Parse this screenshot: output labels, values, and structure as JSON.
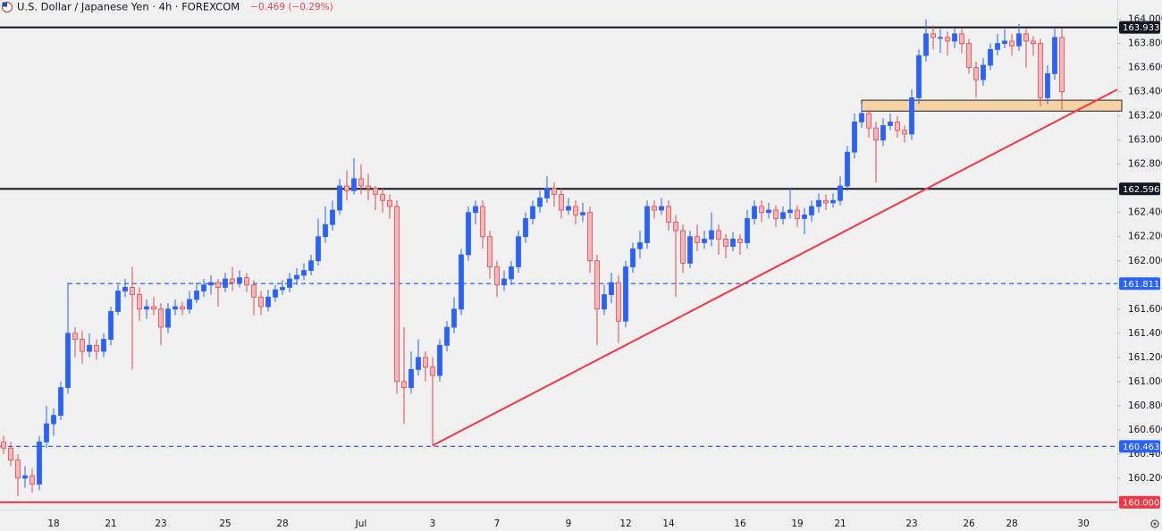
{
  "chart_data": {
    "type": "candlestick",
    "title": "U.S. Dollar / Japanese Yen · 4h · FOREXCOM",
    "change": "−0.469 (−0.29%)",
    "up_color": "#2962ff",
    "down_color": "#e5484d",
    "categories": [
      null,
      null,
      null,
      null,
      null,
      null,
      null,
      "18",
      null,
      null,
      null,
      null,
      null,
      null,
      null,
      "21",
      null,
      null,
      null,
      null,
      null,
      null,
      "23",
      null,
      null,
      null,
      null,
      null,
      null,
      null,
      null,
      "25",
      null,
      null,
      null,
      null,
      null,
      null,
      null,
      "28",
      null,
      null,
      null,
      null,
      null,
      null,
      null,
      null,
      null,
      null,
      "Jul",
      null,
      null,
      null,
      null,
      null,
      null,
      null,
      null,
      null,
      "3",
      null,
      null,
      null,
      null,
      null,
      null,
      null,
      null,
      "7",
      null,
      null,
      null,
      null,
      null,
      null,
      null,
      null,
      null,
      "9",
      null,
      null,
      null,
      null,
      null,
      null,
      null,
      "12",
      null,
      null,
      null,
      null,
      null,
      "14",
      null,
      null,
      null,
      null,
      null,
      null,
      null,
      null,
      null,
      "16",
      null,
      null,
      null,
      null,
      null,
      null,
      null,
      "19",
      null,
      null,
      null,
      null,
      null,
      "21",
      null,
      null,
      null,
      null,
      null,
      null,
      null,
      null,
      null,
      "23",
      null,
      null,
      null,
      null,
      null,
      null,
      null,
      "26",
      null,
      null,
      null,
      null,
      null,
      "28",
      null,
      null,
      null,
      null,
      null,
      null,
      null,
      null,
      null,
      "30"
    ],
    "open": [
      160.5,
      160.45,
      160.35,
      160.2,
      160.22,
      160.15,
      160.5,
      160.65,
      160.72,
      160.95,
      161.4,
      161.35,
      161.25,
      161.3,
      161.25,
      161.35,
      161.58,
      161.75,
      161.78,
      161.72,
      161.6,
      161.62,
      161.6,
      161.45,
      161.6,
      161.62,
      161.6,
      161.68,
      161.75,
      161.8,
      161.82,
      161.78,
      161.85,
      161.82,
      161.86,
      161.8,
      161.7,
      161.62,
      161.7,
      161.76,
      161.78,
      161.85,
      161.88,
      161.92,
      162.0,
      162.2,
      162.3,
      162.42,
      162.62,
      162.58,
      162.68,
      162.62,
      162.6,
      162.55,
      162.5,
      162.45,
      161.0,
      160.95,
      161.1,
      161.2,
      161.12,
      161.05,
      161.3,
      161.45,
      161.6,
      162.05,
      162.4,
      162.45,
      162.2,
      161.95,
      161.8,
      161.85,
      161.95,
      162.2,
      162.35,
      162.45,
      162.52,
      162.6,
      162.55,
      162.42,
      162.45,
      162.38,
      162.4,
      162.0,
      161.6,
      161.72,
      161.82,
      161.5,
      161.95,
      162.1,
      162.15,
      162.45,
      162.42,
      162.45,
      162.32,
      162.25,
      161.98,
      162.2,
      162.15,
      162.18,
      162.25,
      162.18,
      162.12,
      162.18,
      162.15,
      162.35,
      162.45,
      162.4,
      162.42,
      162.35,
      162.4,
      162.42,
      162.35,
      162.38,
      162.45,
      162.5,
      162.48,
      162.5,
      162.62,
      162.9,
      163.15,
      163.22,
      163.1,
      163.0,
      163.12,
      163.15,
      163.08,
      163.05,
      163.35,
      163.7,
      163.88,
      163.85,
      163.85,
      163.82,
      163.88,
      163.8,
      163.6,
      163.5,
      163.62,
      163.75,
      163.8,
      163.82,
      163.78,
      163.88,
      163.82,
      163.8,
      163.35,
      163.55,
      163.85,
      null,
      null,
      null
    ],
    "high": [
      160.55,
      160.5,
      160.4,
      160.3,
      160.28,
      160.55,
      160.8,
      160.78,
      161.0,
      161.82,
      161.45,
      161.42,
      161.4,
      161.35,
      161.4,
      161.62,
      161.8,
      161.85,
      161.95,
      161.78,
      161.68,
      161.7,
      161.65,
      161.65,
      161.68,
      161.66,
      161.75,
      161.82,
      161.85,
      161.88,
      161.85,
      161.9,
      161.95,
      161.92,
      161.9,
      161.84,
      161.75,
      161.76,
      161.8,
      161.84,
      161.9,
      161.94,
      161.98,
      162.05,
      162.35,
      162.45,
      162.5,
      162.68,
      162.75,
      162.85,
      162.8,
      162.72,
      162.62,
      162.6,
      162.55,
      162.5,
      161.45,
      161.25,
      161.35,
      161.25,
      161.2,
      161.35,
      161.5,
      161.7,
      162.1,
      162.45,
      162.5,
      162.5,
      162.25,
      162.0,
      161.92,
      162.0,
      162.25,
      162.4,
      162.5,
      162.58,
      162.7,
      162.65,
      162.6,
      162.52,
      162.5,
      162.48,
      162.45,
      162.05,
      161.8,
      161.9,
      161.88,
      162.0,
      162.15,
      162.25,
      162.5,
      162.5,
      162.52,
      162.5,
      162.38,
      162.3,
      162.25,
      162.3,
      162.25,
      162.4,
      162.3,
      162.22,
      162.24,
      162.22,
      162.42,
      162.5,
      162.5,
      162.48,
      162.46,
      162.45,
      162.6,
      162.46,
      162.44,
      162.5,
      162.56,
      162.55,
      162.56,
      162.7,
      162.95,
      163.22,
      163.3,
      163.25,
      163.15,
      163.18,
      163.22,
      163.2,
      163.12,
      163.42,
      163.75,
      164.0,
      163.95,
      163.92,
      163.9,
      163.93,
      163.92,
      163.84,
      163.65,
      163.68,
      163.8,
      163.88,
      163.92,
      163.88,
      163.96,
      163.92,
      163.86,
      163.84,
      163.62,
      163.93,
      163.93,
      null,
      null,
      null
    ],
    "low": [
      160.4,
      160.3,
      160.05,
      160.12,
      160.08,
      160.1,
      160.45,
      160.55,
      160.68,
      160.9,
      161.2,
      161.15,
      161.2,
      161.18,
      161.2,
      161.3,
      161.55,
      161.7,
      161.1,
      161.5,
      161.52,
      161.55,
      161.3,
      161.4,
      161.55,
      161.55,
      161.56,
      161.65,
      161.7,
      161.72,
      161.62,
      161.74,
      161.75,
      161.78,
      161.74,
      161.55,
      161.55,
      161.58,
      161.66,
      161.72,
      161.74,
      161.8,
      161.84,
      161.88,
      161.96,
      162.15,
      162.25,
      162.38,
      162.5,
      162.55,
      162.55,
      162.5,
      162.42,
      162.4,
      162.35,
      160.9,
      160.65,
      160.9,
      161.05,
      161.0,
      160.47,
      161.0,
      161.25,
      161.4,
      161.55,
      162.0,
      162.3,
      162.1,
      161.85,
      161.7,
      161.75,
      161.8,
      161.9,
      162.15,
      162.3,
      162.4,
      162.48,
      162.45,
      162.35,
      162.38,
      162.3,
      162.32,
      161.9,
      161.3,
      161.55,
      161.65,
      161.32,
      161.45,
      161.9,
      162.02,
      162.1,
      162.35,
      162.38,
      162.25,
      161.7,
      161.9,
      161.94,
      162.08,
      162.1,
      162.12,
      162.05,
      162.02,
      162.08,
      162.05,
      162.1,
      162.3,
      162.32,
      162.35,
      162.28,
      162.3,
      162.35,
      162.28,
      162.22,
      162.32,
      162.4,
      162.42,
      162.44,
      162.46,
      162.58,
      162.85,
      163.1,
      163.02,
      162.65,
      162.95,
      163.08,
      163.02,
      162.98,
      163.0,
      163.3,
      163.65,
      163.75,
      163.72,
      163.7,
      163.76,
      163.72,
      163.55,
      163.35,
      163.45,
      163.58,
      163.7,
      163.76,
      163.7,
      163.74,
      163.6,
      163.7,
      163.28,
      163.3,
      163.5,
      163.25,
      null,
      null,
      null
    ],
    "close": [
      160.45,
      160.35,
      160.2,
      160.22,
      160.15,
      160.5,
      160.65,
      160.72,
      160.95,
      161.4,
      161.35,
      161.25,
      161.3,
      161.25,
      161.35,
      161.58,
      161.75,
      161.78,
      161.72,
      161.6,
      161.62,
      161.6,
      161.45,
      161.6,
      161.62,
      161.6,
      161.68,
      161.75,
      161.8,
      161.82,
      161.78,
      161.85,
      161.82,
      161.86,
      161.8,
      161.7,
      161.62,
      161.7,
      161.76,
      161.78,
      161.85,
      161.88,
      161.92,
      162.0,
      162.2,
      162.3,
      162.42,
      162.62,
      162.58,
      162.68,
      162.62,
      162.6,
      162.55,
      162.5,
      162.45,
      161.0,
      160.95,
      161.1,
      161.2,
      161.12,
      161.05,
      161.3,
      161.45,
      161.6,
      162.05,
      162.4,
      162.45,
      162.2,
      161.95,
      161.8,
      161.85,
      161.95,
      162.2,
      162.35,
      162.45,
      162.52,
      162.6,
      162.55,
      162.42,
      162.45,
      162.38,
      162.4,
      162.0,
      161.6,
      161.72,
      161.82,
      161.5,
      161.95,
      162.1,
      162.15,
      162.45,
      162.42,
      162.45,
      162.32,
      162.25,
      161.98,
      162.2,
      162.15,
      162.18,
      162.25,
      162.18,
      162.12,
      162.18,
      162.15,
      162.35,
      162.45,
      162.4,
      162.42,
      162.35,
      162.4,
      162.42,
      162.35,
      162.38,
      162.45,
      162.5,
      162.48,
      162.5,
      162.62,
      162.9,
      163.15,
      163.22,
      163.1,
      163.0,
      163.12,
      163.15,
      163.08,
      163.05,
      163.35,
      163.7,
      163.88,
      163.85,
      163.85,
      163.82,
      163.88,
      163.8,
      163.6,
      163.5,
      163.62,
      163.75,
      163.8,
      163.82,
      163.78,
      163.88,
      163.82,
      163.8,
      163.35,
      163.55,
      163.85,
      163.4,
      null,
      null,
      null
    ],
    "ylim": [
      159.94,
      164.16
    ],
    "yticks": [
      {
        "value": 160.2,
        "label": "160.200"
      },
      {
        "value": 160.4,
        "label": "160.400"
      },
      {
        "value": 160.6,
        "label": "160.600"
      },
      {
        "value": 160.8,
        "label": "160.800"
      },
      {
        "value": 161.0,
        "label": "161.000"
      },
      {
        "value": 161.2,
        "label": "161.200"
      },
      {
        "value": 161.4,
        "label": "161.400"
      },
      {
        "value": 161.6,
        "label": "161.600"
      },
      {
        "value": 162.0,
        "label": "162.000"
      },
      {
        "value": 162.2,
        "label": "162.200"
      },
      {
        "value": 162.4,
        "label": "162.400"
      },
      {
        "value": 162.8,
        "label": "162.800"
      },
      {
        "value": 163.0,
        "label": "163.000"
      },
      {
        "value": 163.2,
        "label": "163.200"
      },
      {
        "value": 163.4,
        "label": "163.400"
      },
      {
        "value": 163.6,
        "label": "163.600"
      },
      {
        "value": 163.8,
        "label": "163.800"
      },
      {
        "value": 164.0,
        "label": "164.000"
      }
    ],
    "levels": [
      {
        "value": 163.933,
        "color": "#131722",
        "style": "solid"
      },
      {
        "value": 162.596,
        "color": "#131722",
        "style": "solid"
      },
      {
        "value": 161.811,
        "color": "#2962ff",
        "style": "dashed",
        "start_index": 9
      },
      {
        "value": 160.463,
        "color": "#2962ff",
        "style": "dashed"
      },
      {
        "value": 160.0,
        "label": "160.000",
        "color": "#f23645",
        "style": "solid"
      }
    ],
    "zone": {
      "low": 163.24,
      "high": 163.33,
      "start_index": 120,
      "color": "#f6d3a5"
    },
    "trendline": {
      "from": {
        "index": 60,
        "price": 160.47
      },
      "to": {
        "index": 148,
        "price": 163.18
      },
      "color": "#f23645"
    }
  }
}
